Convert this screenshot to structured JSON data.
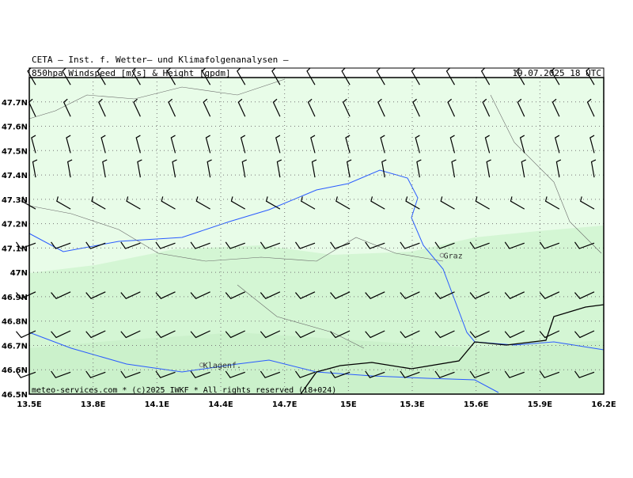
{
  "header": {
    "source": "CETA – Inst. f. Wetter– und Klimafolgenanalysen –",
    "product": "850hpa_Windspeed_[m/s]_&_Height_[gpdm]",
    "valid": "19.07.2025 18 UTC"
  },
  "footer": "meteo-services.com * (c)2025 IWKF * All rights reserved (18+024)",
  "map": {
    "xlim": [
      13.5,
      16.2
    ],
    "ylim": [
      46.5,
      47.8
    ],
    "xticks": [
      {
        "value": 13.5,
        "label": "13.5E"
      },
      {
        "value": 13.8,
        "label": "13.8E"
      },
      {
        "value": 14.1,
        "label": "14.1E"
      },
      {
        "value": 14.4,
        "label": "14.4E"
      },
      {
        "value": 14.7,
        "label": "14.7E"
      },
      {
        "value": 15,
        "label": "15E"
      },
      {
        "value": 15.3,
        "label": "15.3E"
      },
      {
        "value": 15.6,
        "label": "15.6E"
      },
      {
        "value": 15.9,
        "label": "15.9E"
      },
      {
        "value": 16.2,
        "label": "16.2E"
      }
    ],
    "yticks": [
      {
        "value": 46.5,
        "label": "46.5N"
      },
      {
        "value": 46.6,
        "label": "46.6N"
      },
      {
        "value": 46.7,
        "label": "46.7N"
      },
      {
        "value": 46.8,
        "label": "46.8N"
      },
      {
        "value": 46.9,
        "label": "46.9N"
      },
      {
        "value": 47,
        "label": "47N"
      },
      {
        "value": 47.1,
        "label": "47.1N"
      },
      {
        "value": 47.2,
        "label": "47.2N"
      },
      {
        "value": 47.3,
        "label": "47.3N"
      },
      {
        "value": 47.4,
        "label": "47.4N"
      },
      {
        "value": 47.5,
        "label": "47.5N"
      },
      {
        "value": 47.6,
        "label": "47.6N"
      },
      {
        "value": 47.7,
        "label": "47.7N"
      }
    ],
    "cities": [
      {
        "name": "Graz",
        "lon": 15.44,
        "lat": 47.07
      },
      {
        "name": "Klagenf.",
        "lon": 14.31,
        "lat": 46.62
      }
    ],
    "barb_rows": [
      {
        "lat": 47.77,
        "dir": 330,
        "speed": 5
      },
      {
        "lat": 47.64,
        "dir": 335,
        "speed": 5
      },
      {
        "lat": 47.49,
        "dir": 345,
        "speed": 5
      },
      {
        "lat": 47.39,
        "dir": 350,
        "speed": 5
      },
      {
        "lat": 47.26,
        "dir": 300,
        "speed": 5
      },
      {
        "lat": 47.12,
        "dir": 250,
        "speed": 10
      },
      {
        "lat": 46.92,
        "dir": 245,
        "speed": 10
      },
      {
        "lat": 46.76,
        "dir": 245,
        "speed": 10
      },
      {
        "lat": 46.59,
        "dir": 250,
        "speed": 10
      }
    ]
  }
}
